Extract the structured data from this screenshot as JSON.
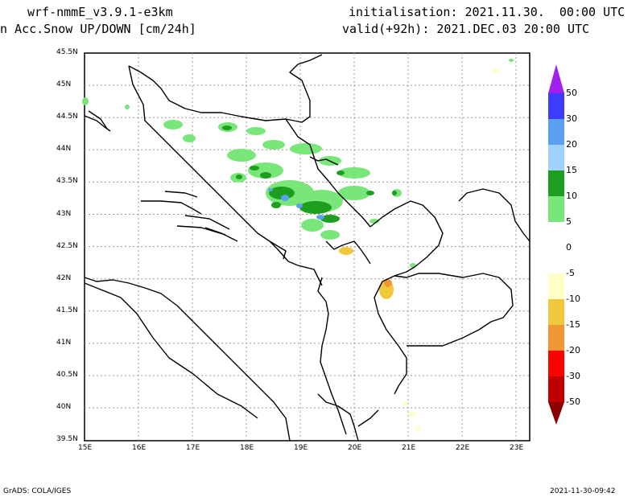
{
  "header": {
    "model": "wrf-nmmE_v3.9.1-e3km",
    "field": "n Acc.Snow UP/DOWN [cm/24h]",
    "init": "initialisation: 2021.11.30.  00:00 UTC",
    "valid": "valid(+92h): 2021.DEC.03 20:00 UTC"
  },
  "footer": {
    "credit": "GrADS: COLA/IGES",
    "timestamp": "2021-11-30-09:42"
  },
  "axes": {
    "lon_ticks": [
      "15E",
      "16E",
      "17E",
      "18E",
      "19E",
      "20E",
      "21E",
      "22E",
      "23E"
    ],
    "lat_ticks": [
      "45.5N",
      "45N",
      "44.5N",
      "44N",
      "43.5N",
      "43N",
      "42.5N",
      "42N",
      "41.5N",
      "41N",
      "40.5N",
      "40N",
      "39.5N"
    ],
    "lon_range": [
      15,
      23.3
    ],
    "lat_range": [
      39.5,
      45.5
    ],
    "grid": true
  },
  "colorbar": {
    "labels": [
      "50",
      "30",
      "20",
      "15",
      "10",
      "5",
      "0",
      "-5",
      "-10",
      "-15",
      "-20",
      "-30",
      "-50"
    ],
    "colors": {
      "top_arrow": "#a020f0",
      "c50": "#3c3cff",
      "c30": "#5aa0f0",
      "c20": "#a0d2ff",
      "c15": "#1e9e1e",
      "c10": "#78e678",
      "c5": "#ffffff",
      "cm5": "#ffffc8",
      "cm10": "#f0c83c",
      "cm15": "#f09632",
      "cm20": "#ff0000",
      "cm30": "#c00000",
      "bottom_arrow": "#8b0000"
    }
  }
}
